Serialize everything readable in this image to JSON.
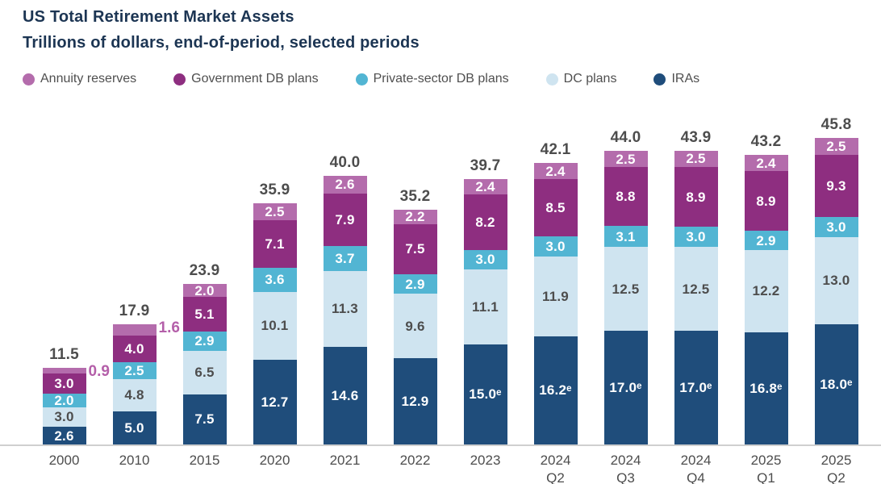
{
  "header": {
    "title": "US Total Retirement Market Assets",
    "subtitle": "Trillions of dollars, end-of-period, selected periods"
  },
  "legend": {
    "items": [
      {
        "label": "Annuity reserves",
        "color": "#b46cac"
      },
      {
        "label": "Government DB plans",
        "color": "#8e2e80"
      },
      {
        "label": "Private-sector DB plans",
        "color": "#52b5d3"
      },
      {
        "label": "DC plans",
        "color": "#cfe4f0"
      },
      {
        "label": "IRAs",
        "color": "#1f4d7b"
      }
    ]
  },
  "colors": {
    "background": "#ffffff",
    "title": "#1c3553",
    "totals": "#4d4d4d",
    "axis_labels": "#4d4d4d",
    "legend_text": "#4f4f4f",
    "axis_line": "#cfcfcf",
    "outside_label": "#b45fa9"
  },
  "chart_data": {
    "type": "bar",
    "stacked": true,
    "stack_order": "bottom-to-top",
    "title": "US Total Retirement Market Assets",
    "subtitle": "Trillions of dollars, end-of-period, selected periods",
    "unit": "trillions of US dollars",
    "legend_position": "top",
    "grid": false,
    "ylim": [
      0,
      46
    ],
    "categories": [
      "2000",
      "2010",
      "2015",
      "2020",
      "2021",
      "2022",
      "2023",
      "2024 Q2",
      "2024 Q3",
      "2024 Q4",
      "2025 Q1",
      "2025 Q2"
    ],
    "totals": [
      "11.5",
      "17.9",
      "23.9",
      "35.9",
      "40.0",
      "35.2",
      "39.7",
      "42.1",
      "44.0",
      "43.9",
      "43.2",
      "45.8"
    ],
    "series": [
      {
        "name": "IRAs",
        "color": "#1f4d7b",
        "label_color": "#ffffff",
        "values": [
          2.6,
          5.0,
          7.5,
          12.7,
          14.6,
          12.9,
          15.0,
          16.2,
          17.0,
          17.0,
          16.8,
          18.0
        ],
        "labels": [
          "2.6",
          "5.0",
          "7.5",
          "12.7",
          "14.6",
          "12.9",
          "15.0ᵉ",
          "16.2ᵉ",
          "17.0ᵉ",
          "17.0ᵉ",
          "16.8ᵉ",
          "18.0ᵉ"
        ]
      },
      {
        "name": "DC plans",
        "color": "#cfe4f0",
        "label_color": "#4d4d4d",
        "values": [
          3.0,
          4.8,
          6.5,
          10.1,
          11.3,
          9.6,
          11.1,
          11.9,
          12.5,
          12.5,
          12.2,
          13.0
        ],
        "labels": [
          "3.0",
          "4.8",
          "6.5",
          "10.1",
          "11.3",
          "9.6",
          "11.1",
          "11.9",
          "12.5",
          "12.5",
          "12.2",
          "13.0"
        ]
      },
      {
        "name": "Private-sector DB plans",
        "color": "#52b5d3",
        "label_color": "#ffffff",
        "values": [
          2.0,
          2.5,
          2.9,
          3.6,
          3.7,
          2.9,
          3.0,
          3.0,
          3.1,
          3.0,
          2.9,
          3.0
        ],
        "labels": [
          "2.0",
          "2.5",
          "2.9",
          "3.6",
          "3.7",
          "2.9",
          "3.0",
          "3.0",
          "3.1",
          "3.0",
          "2.9",
          "3.0"
        ]
      },
      {
        "name": "Government DB plans",
        "color": "#8e2e80",
        "label_color": "#ffffff",
        "values": [
          3.0,
          4.0,
          5.1,
          7.1,
          7.9,
          7.5,
          8.2,
          8.5,
          8.8,
          8.9,
          8.9,
          9.3
        ],
        "labels": [
          "3.0",
          "4.0",
          "5.1",
          "7.1",
          "7.9",
          "7.5",
          "8.2",
          "8.5",
          "8.8",
          "8.9",
          "8.9",
          "9.3"
        ]
      },
      {
        "name": "Annuity reserves",
        "color": "#b46cac",
        "label_color": "#ffffff",
        "values": [
          0.9,
          1.6,
          2.0,
          2.5,
          2.6,
          2.2,
          2.4,
          2.4,
          2.5,
          2.5,
          2.4,
          2.5
        ],
        "labels": [
          "",
          "",
          "2.0",
          "2.5",
          "2.6",
          "2.2",
          "2.4",
          "2.4",
          "2.5",
          "2.5",
          "2.4",
          "2.5"
        ],
        "outside_labels": [
          "0.9",
          "1.6",
          "",
          "",
          "",
          "",
          "",
          "",
          "",
          "",
          "",
          ""
        ]
      }
    ]
  }
}
